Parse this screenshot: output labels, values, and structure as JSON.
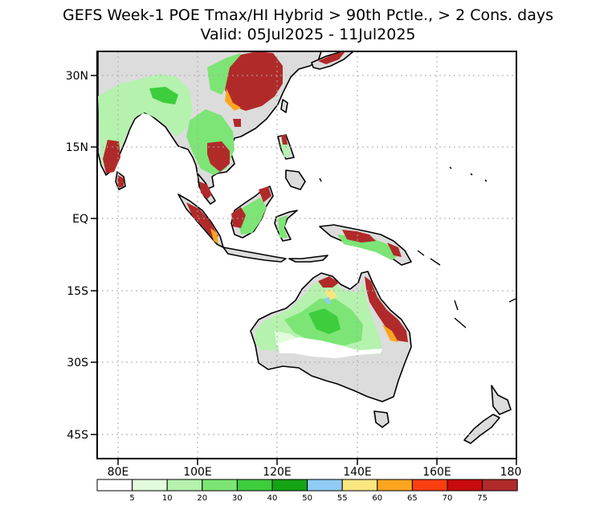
{
  "title": "GEFS Week-1 POE Tmax/HI Hybrid > 90th Pctle., > 2 Cons. days",
  "valid": "Valid: 05Jul2025 - 11Jul2025",
  "map": {
    "lon_ticks": [
      "80E",
      "100E",
      "120E",
      "140E",
      "160E",
      "180"
    ],
    "lat_ticks": [
      "30N",
      "15N",
      "EQ",
      "15S",
      "30S",
      "45S"
    ],
    "extent": {
      "lon_min": 75,
      "lon_max": 180,
      "lat_max": 35,
      "lat_min": -50
    }
  },
  "colorbar": {
    "labels": [
      "5",
      "10",
      "20",
      "30",
      "40",
      "50",
      "55",
      "60",
      "65",
      "70",
      "75"
    ],
    "colors": [
      "#ffffff",
      "#e2fbdc",
      "#b4f2ae",
      "#7ce575",
      "#3dcd3d",
      "#14a414",
      "#8fcbf2",
      "#fbe680",
      "#fba51e",
      "#fb3e10",
      "#c80a0a",
      "#b12a2a"
    ]
  }
}
